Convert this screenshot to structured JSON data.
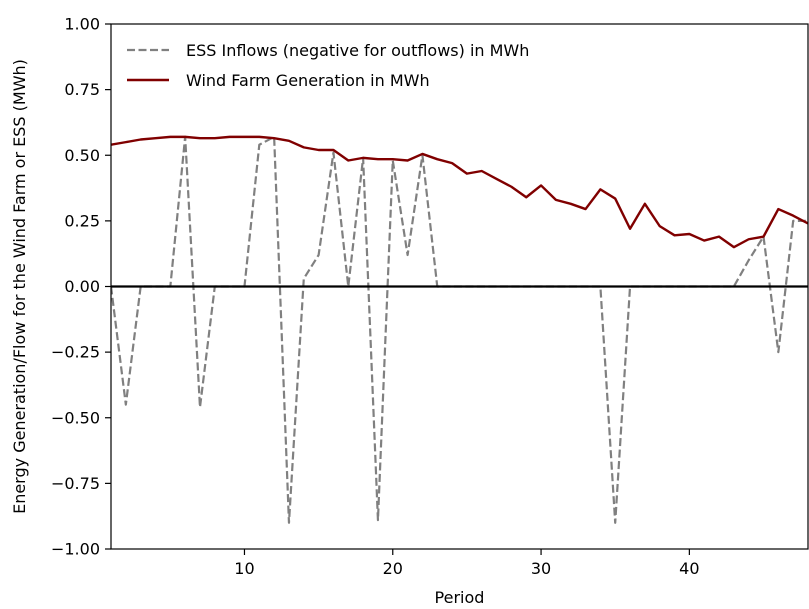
{
  "chart_data": {
    "type": "line",
    "title": "",
    "xlabel": "Period",
    "ylabel": "Energy Generation/Flow for the Wind Farm or ESS (MWh)",
    "xlim": [
      1,
      48
    ],
    "ylim": [
      -1.0,
      1.0
    ],
    "xticks": [
      10,
      20,
      30,
      40
    ],
    "yticks": [
      -1.0,
      -0.75,
      -0.5,
      -0.25,
      0.0,
      0.25,
      0.5,
      0.75,
      1.0
    ],
    "ytick_labels": [
      "−1.00",
      "−0.75",
      "−0.50",
      "−0.25",
      "0.00",
      "0.25",
      "0.50",
      "0.75",
      "1.00"
    ],
    "xtick_labels": [
      "10",
      "20",
      "30",
      "40"
    ],
    "grid": false,
    "legend_position": "top-left",
    "zero_line": true,
    "series": [
      {
        "name": "ESS Inflows (negative for outflows) in MWh",
        "style": "dashed",
        "color": "#808080",
        "x": [
          1,
          2,
          3,
          4,
          5,
          6,
          7,
          8,
          9,
          10,
          11,
          12,
          13,
          14,
          15,
          16,
          17,
          18,
          19,
          20,
          21,
          22,
          23,
          24,
          25,
          26,
          27,
          28,
          29,
          30,
          31,
          32,
          33,
          34,
          35,
          36,
          37,
          38,
          39,
          40,
          41,
          42,
          43,
          44,
          45,
          46,
          47,
          48
        ],
        "y": [
          0.0,
          -0.45,
          0.0,
          0.0,
          0.0,
          0.57,
          -0.46,
          0.0,
          0.0,
          0.0,
          0.54,
          0.57,
          -0.9,
          0.03,
          0.12,
          0.51,
          0.0,
          0.49,
          -0.89,
          0.48,
          0.12,
          0.5,
          0.0,
          0.0,
          0.0,
          0.0,
          0.0,
          0.0,
          0.0,
          0.0,
          0.0,
          0.0,
          0.0,
          0.0,
          -0.9,
          0.0,
          0.0,
          0.0,
          0.0,
          0.0,
          0.0,
          0.0,
          0.0,
          0.1,
          0.19,
          -0.25,
          0.25,
          0.25
        ]
      },
      {
        "name": "Wind Farm Generation in MWh",
        "style": "solid",
        "color": "#800000",
        "x": [
          1,
          2,
          3,
          4,
          5,
          6,
          7,
          8,
          9,
          10,
          11,
          12,
          13,
          14,
          15,
          16,
          17,
          18,
          19,
          20,
          21,
          22,
          23,
          24,
          25,
          26,
          27,
          28,
          29,
          30,
          31,
          32,
          33,
          34,
          35,
          36,
          37,
          38,
          39,
          40,
          41,
          42,
          43,
          44,
          45,
          46,
          47,
          48
        ],
        "y": [
          0.54,
          0.55,
          0.56,
          0.565,
          0.57,
          0.57,
          0.565,
          0.565,
          0.57,
          0.57,
          0.57,
          0.565,
          0.555,
          0.53,
          0.52,
          0.52,
          0.48,
          0.49,
          0.485,
          0.485,
          0.48,
          0.505,
          0.485,
          0.47,
          0.43,
          0.44,
          0.41,
          0.38,
          0.34,
          0.385,
          0.33,
          0.315,
          0.295,
          0.37,
          0.335,
          0.22,
          0.315,
          0.23,
          0.195,
          0.2,
          0.175,
          0.19,
          0.15,
          0.18,
          0.19,
          0.295,
          0.27,
          0.24
        ]
      }
    ]
  }
}
